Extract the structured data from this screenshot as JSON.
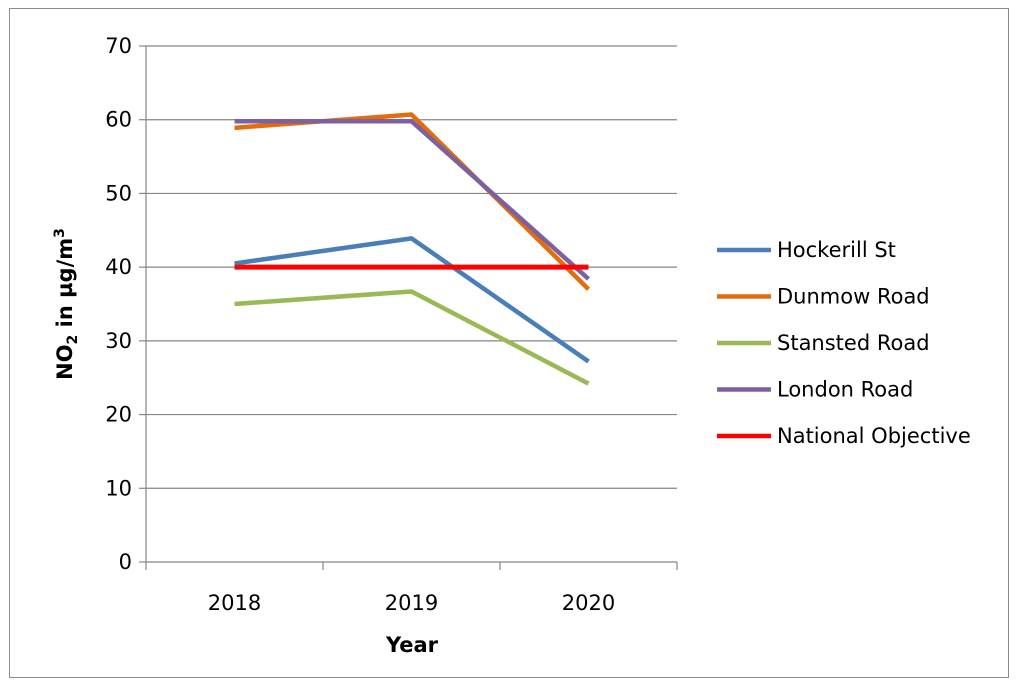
{
  "chart_data": {
    "type": "line",
    "xlabel": "Year",
    "ylabel_main": "NO",
    "ylabel_sub": "2",
    "ylabel_rest": " in µg/m",
    "ylabel_sup": "3",
    "ylim": [
      0,
      70
    ],
    "yticks": [
      0,
      10,
      20,
      30,
      40,
      50,
      60,
      70
    ],
    "grid": true,
    "legend_position": "right",
    "categories": [
      "2018",
      "2019",
      "2020"
    ],
    "series": [
      {
        "name": "Hockerill St",
        "color": "#4a7ebb",
        "values": [
          40.5,
          43.9,
          27.2
        ]
      },
      {
        "name": "Dunmow Road",
        "color": "#e46c0a",
        "values": [
          58.9,
          60.7,
          37.0
        ]
      },
      {
        "name": "Stansted Road",
        "color": "#98b954",
        "values": [
          35.0,
          36.7,
          24.2
        ]
      },
      {
        "name": "London Road",
        "color": "#7d60a0",
        "values": [
          59.8,
          59.8,
          38.4
        ]
      },
      {
        "name": "National Objective",
        "color": "#ff0000",
        "values": [
          40,
          40,
          40
        ]
      }
    ]
  }
}
